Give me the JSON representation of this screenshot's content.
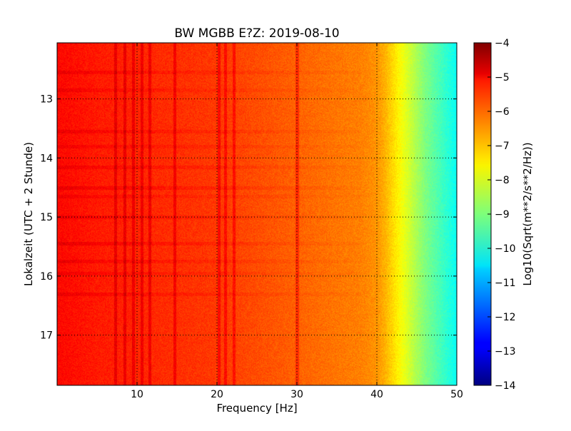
{
  "chart_data": {
    "type": "heatmap",
    "title": "BW MGBB E?Z: 2019-08-10",
    "xlabel": "Frequency [Hz]",
    "ylabel": "Lokalzeit (UTC + 2 Stunde)",
    "xlim": [
      0,
      50
    ],
    "ylim": [
      12.05,
      17.85
    ],
    "y_inverted": true,
    "grid": true,
    "x_ticks": [
      10,
      20,
      30,
      40,
      50
    ],
    "x_tick_labels": [
      "10",
      "20",
      "30",
      "40",
      "50"
    ],
    "y_ticks": [
      13,
      14,
      15,
      16,
      17
    ],
    "y_tick_labels": [
      "13",
      "14",
      "15",
      "16",
      "17"
    ],
    "colormap": "jet",
    "colorbar": {
      "label": "Log10(Sqrt(m**2/s**2/Hz))",
      "range": [
        -14,
        -4
      ],
      "ticks": [
        -4,
        -5,
        -6,
        -7,
        -8,
        -9,
        -10,
        -11,
        -12,
        -13,
        -14
      ],
      "tick_labels": [
        "−4",
        "−5",
        "−6",
        "−7",
        "−8",
        "−9",
        "−10",
        "−11",
        "−12",
        "−13",
        "−14"
      ]
    },
    "spectrum_profile": {
      "frequency_hz": [
        0,
        5,
        10,
        15,
        20,
        25,
        30,
        35,
        38,
        40,
        41,
        42,
        43,
        44,
        45,
        46,
        47,
        48,
        49,
        50
      ],
      "value": [
        -5.3,
        -5.5,
        -5.6,
        -5.7,
        -5.8,
        -6.0,
        -6.2,
        -6.4,
        -6.5,
        -6.7,
        -7.0,
        -7.4,
        -7.8,
        -8.2,
        -8.6,
        -9.0,
        -9.3,
        -9.6,
        -9.9,
        -10.2
      ]
    },
    "persistent_lines_hz": [
      7.3,
      8.4,
      9.5,
      10.6,
      11.6,
      14.7,
      20.2,
      21.0,
      22.1,
      30.0
    ]
  }
}
